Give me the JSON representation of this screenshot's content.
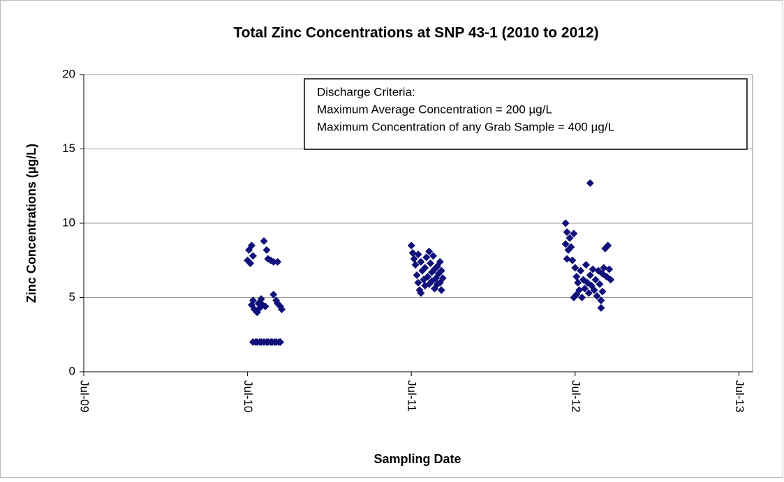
{
  "chart_data": {
    "type": "scatter",
    "title": "Total Zinc Concentrations at SNP 43-1 (2010 to 2012)",
    "xlabel": "Sampling Date",
    "ylabel": "Zinc Concentrations (µg/L)",
    "annotations": [
      "Discharge Criteria:",
      "Maximum Average Concentration = 200 µg/L",
      "Maximum Concentration of any Grab Sample = 400 µg/L"
    ],
    "xlim": [
      0,
      49
    ],
    "xticks": [
      {
        "value": 0,
        "label": "Jul-09"
      },
      {
        "value": 12,
        "label": "Jul-10"
      },
      {
        "value": 24,
        "label": "Jul-11"
      },
      {
        "value": 36,
        "label": "Jul-12"
      },
      {
        "value": 48,
        "label": "Jul-13"
      }
    ],
    "ylim": [
      0,
      20
    ],
    "yticks": [
      0,
      5,
      10,
      15,
      20
    ],
    "grid": true,
    "color": "#10107a",
    "x": [
      12.0,
      12.1,
      12.2,
      12.3,
      12.4,
      12.3,
      12.4,
      12.5,
      12.7,
      12.8,
      12.9,
      13.0,
      13.1,
      13.3,
      12.4,
      12.6,
      12.7,
      12.9,
      13.0,
      13.2,
      13.4,
      13.5,
      13.7,
      13.8,
      14.0,
      14.1,
      14.3,
      14.4,
      13.2,
      13.4,
      13.5,
      13.7,
      13.9,
      14.2,
      13.9,
      14.1,
      14.2,
      14.4,
      14.5,
      24.0,
      24.1,
      24.2,
      24.3,
      24.4,
      24.5,
      24.6,
      24.7,
      24.5,
      24.7,
      24.8,
      24.9,
      25.0,
      25.0,
      25.1,
      25.2,
      25.3,
      25.3,
      25.4,
      25.5,
      25.5,
      25.6,
      25.7,
      25.7,
      25.8,
      25.9,
      25.9,
      26.0,
      26.1,
      26.1,
      26.2,
      26.3,
      26.2,
      35.3,
      35.4,
      35.3,
      35.5,
      35.4,
      35.6,
      35.7,
      35.8,
      35.9,
      36.0,
      36.1,
      35.9,
      36.1,
      36.2,
      36.3,
      36.4,
      36.5,
      36.6,
      36.7,
      36.8,
      36.9,
      37.0,
      37.1,
      37.1,
      37.2,
      37.3,
      37.4,
      37.5,
      37.6,
      37.7,
      37.8,
      37.9,
      38.0,
      38.0,
      38.1,
      38.2,
      38.3,
      38.4,
      38.5,
      38.6,
      37.9
    ],
    "y": [
      7.5,
      8.2,
      7.3,
      8.5,
      7.8,
      4.5,
      4.8,
      4.2,
      4.0,
      4.6,
      4.3,
      4.9,
      4.5,
      4.4,
      2,
      2,
      2,
      2,
      2,
      2,
      2,
      2,
      2,
      2,
      2,
      2,
      2,
      2,
      8.8,
      8.2,
      7.6,
      7.5,
      7.4,
      7.4,
      5.2,
      4.8,
      4.6,
      4.4,
      4.2,
      8.5,
      8.0,
      7.6,
      7.2,
      6.5,
      6.0,
      5.5,
      5.3,
      7.9,
      7.4,
      6.8,
      6.2,
      5.8,
      7.0,
      7.7,
      6.4,
      8.1,
      5.9,
      7.3,
      6.7,
      6.1,
      7.8,
      5.6,
      6.9,
      6.3,
      7.1,
      5.9,
      6.6,
      7.4,
      6.0,
      6.8,
      6.3,
      5.5,
      10.0,
      9.4,
      8.6,
      8.2,
      7.6,
      9.0,
      8.4,
      7.5,
      9.3,
      7.0,
      6.4,
      5.0,
      5.2,
      6.0,
      5.5,
      6.8,
      5.0,
      6.2,
      5.6,
      7.2,
      6.0,
      5.3,
      12.7,
      6.5,
      5.8,
      6.9,
      5.5,
      6.2,
      5.1,
      6.8,
      5.9,
      4.3,
      6.6,
      5.4,
      7.0,
      8.3,
      6.4,
      8.5,
      6.9,
      6.2,
      4.8
    ]
  }
}
